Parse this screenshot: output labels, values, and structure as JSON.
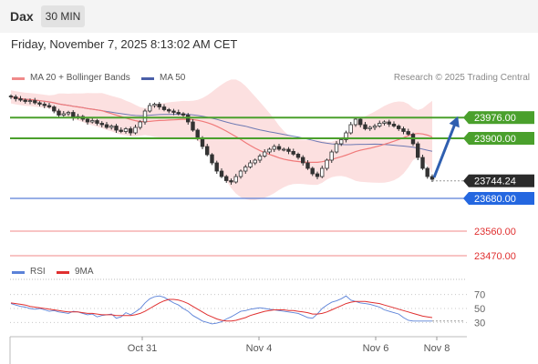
{
  "header": {
    "symbol": "Dax",
    "timeframe": "30 MIN"
  },
  "datetime": "Friday, November 7, 2025 8:13:02 AM CET",
  "legend": {
    "ma_bb_label": "MA 20 + Bollinger Bands",
    "ma50_label": "MA 50",
    "research": "Research © 2025 Trading Central"
  },
  "rsi_legend": {
    "rsi_label": "RSI",
    "ma_label": "9MA"
  },
  "colors": {
    "resistance": "#4aa02c",
    "support_line": "#5b7fd6",
    "target_line": "#f08a8a",
    "current_price": "#2b2b2b",
    "support_box": "#2467e0",
    "target_text": "#e03030",
    "ma20": "#f07a7a",
    "ma50": "#4a5fa8",
    "bollinger_fill": "#fbd6d6",
    "candle": "#333333",
    "arrow": "#2f5fb0",
    "rsi": "#5b82d8",
    "rsi_ma": "#e03030"
  },
  "chart_data": [
    {
      "type": "candlestick",
      "title": "Dax",
      "x_ticks": [
        "Oct 31",
        "Nov 4",
        "Nov 6",
        "Nov 8"
      ],
      "y_range": [
        23440,
        24080
      ],
      "indicators": [
        "MA 20 + Bollinger Bands",
        "MA 50"
      ],
      "close_series": [
        24052,
        24045,
        24040,
        24035,
        24038,
        24030,
        24025,
        24020,
        24015,
        24000,
        23985,
        23990,
        23995,
        23975,
        23980,
        23970,
        23960,
        23965,
        23955,
        23950,
        23940,
        23945,
        23930,
        23925,
        23935,
        23920,
        23940,
        23960,
        24000,
        24020,
        24025,
        24015,
        24005,
        24000,
        23995,
        23990,
        23985,
        23960,
        23930,
        23900,
        23870,
        23840,
        23810,
        23780,
        23760,
        23745,
        23740,
        23760,
        23780,
        23795,
        23810,
        23820,
        23835,
        23850,
        23860,
        23870,
        23860,
        23860,
        23852,
        23842,
        23830,
        23810,
        23790,
        23770,
        23760,
        23790,
        23820,
        23850,
        23880,
        23895,
        23920,
        23950,
        23970,
        23950,
        23935,
        23940,
        23945,
        23955,
        23960,
        23952,
        23945,
        23935,
        23925,
        23915,
        23880,
        23830,
        23790,
        23760,
        23750
      ],
      "levels": [
        {
          "label": "23976.00",
          "value": 23976,
          "kind": "resistance"
        },
        {
          "label": "23900.00",
          "value": 23900,
          "kind": "resistance"
        },
        {
          "label": "23744.24",
          "value": 23744.24,
          "kind": "current"
        },
        {
          "label": "23680.00",
          "value": 23680,
          "kind": "support"
        },
        {
          "label": "23560.00",
          "value": 23560,
          "kind": "target"
        },
        {
          "label": "23470.00",
          "value": 23470,
          "kind": "target"
        }
      ]
    },
    {
      "type": "line",
      "title": "RSI",
      "y_ticks": [
        70,
        50,
        30
      ],
      "y_range": [
        20,
        80
      ],
      "series": [
        {
          "name": "RSI",
          "values": [
            57,
            55,
            53,
            52,
            50,
            49,
            50,
            48,
            46,
            47,
            45,
            44,
            43,
            46,
            45,
            43,
            41,
            42,
            38,
            40,
            41,
            42,
            36,
            38,
            44,
            41,
            45,
            50,
            58,
            64,
            67,
            68,
            66,
            62,
            58,
            55,
            50,
            46,
            40,
            36,
            32,
            30,
            28,
            29,
            31,
            35,
            38,
            42,
            46,
            47,
            49,
            50,
            51,
            50,
            49,
            48,
            47,
            46,
            45,
            44,
            43,
            40,
            37,
            36,
            42,
            50,
            55,
            59,
            61,
            64,
            68,
            62,
            60,
            58,
            57,
            56,
            54,
            52,
            48,
            46,
            44,
            42,
            37,
            33,
            32,
            32,
            32,
            32,
            32
          ]
        },
        {
          "name": "9MA",
          "values": [
            58,
            57,
            56,
            55,
            53,
            52,
            51,
            50,
            49,
            48,
            47,
            46,
            45,
            45,
            45,
            44,
            43,
            43,
            42,
            41,
            41,
            41,
            40,
            40,
            40,
            40,
            41,
            43,
            46,
            50,
            54,
            58,
            61,
            63,
            63,
            62,
            60,
            57,
            53,
            49,
            45,
            41,
            38,
            35,
            33,
            32,
            32,
            33,
            35,
            37,
            40,
            42,
            44,
            46,
            47,
            48,
            48,
            48,
            47,
            47,
            46,
            45,
            44,
            42,
            42,
            43,
            45,
            48,
            51,
            54,
            57,
            59,
            60,
            60,
            60,
            59,
            58,
            57,
            55,
            53,
            51,
            49,
            47,
            45,
            43,
            41,
            39,
            38,
            37
          ]
        }
      ]
    }
  ]
}
